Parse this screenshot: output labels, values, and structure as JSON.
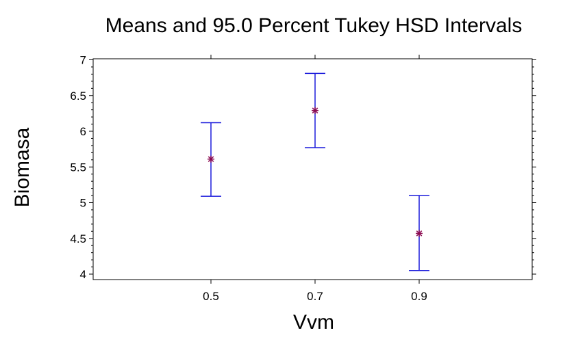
{
  "chart_data": {
    "type": "errorbar",
    "title": "Means and 95.0 Percent Tukey HSD Intervals",
    "xlabel": "Vvm",
    "ylabel": "Biomasa",
    "categories": [
      "0.5",
      "0.7",
      "0.9"
    ],
    "means": [
      5.61,
      6.29,
      4.57
    ],
    "lower": [
      5.09,
      5.77,
      4.05
    ],
    "upper": [
      6.12,
      6.81,
      5.1
    ],
    "ylim": [
      4,
      7
    ],
    "yticks": [
      4,
      4.5,
      5,
      5.5,
      6,
      6.5,
      7
    ],
    "ytick_labels": [
      "4",
      "4.5",
      "5",
      "5.5",
      "6",
      "6.5",
      "7"
    ],
    "grid": false,
    "colors": {
      "interval": "#1a1adb",
      "mean": "#8b0a50"
    }
  }
}
